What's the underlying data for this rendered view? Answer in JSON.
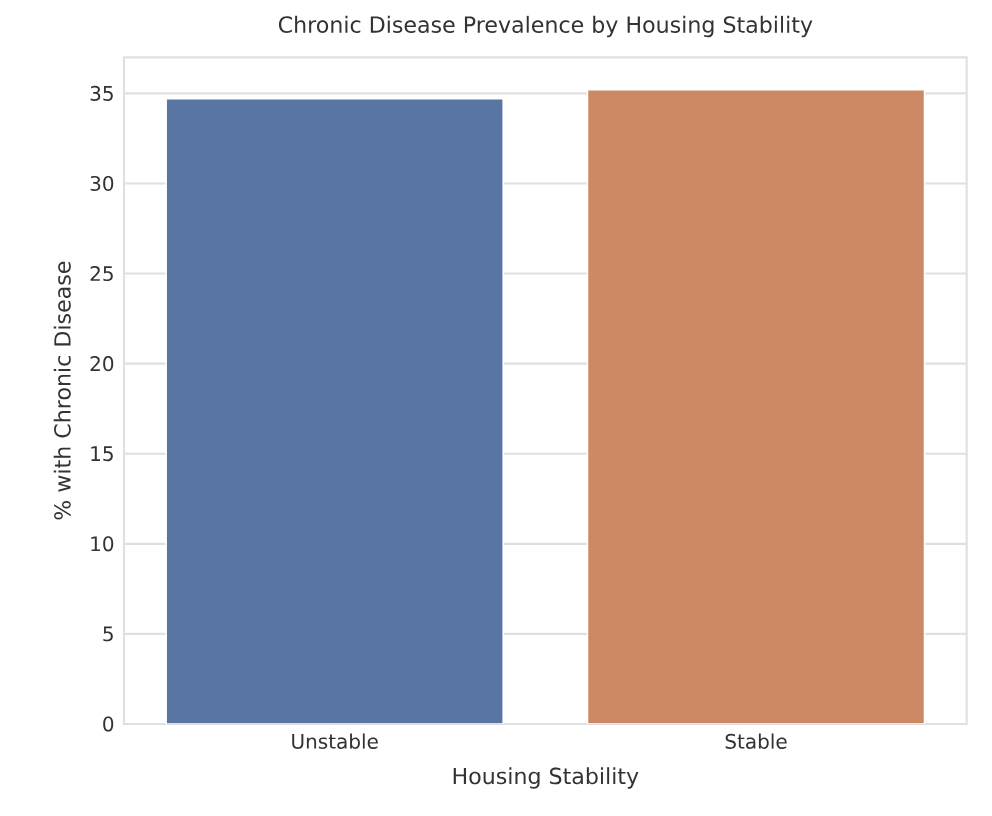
{
  "chart_data": {
    "type": "bar",
    "title": "Chronic Disease Prevalence by Housing Stability",
    "xlabel": "Housing Stability",
    "ylabel": "% with Chronic Disease",
    "categories": [
      "Unstable",
      "Stable"
    ],
    "values": [
      34.7,
      35.2
    ],
    "colors": [
      "#5975a4",
      "#cc8963"
    ],
    "ylim": [
      0,
      37
    ],
    "yticks": [
      0,
      5,
      10,
      15,
      20,
      25,
      30,
      35
    ],
    "grid": "y"
  }
}
